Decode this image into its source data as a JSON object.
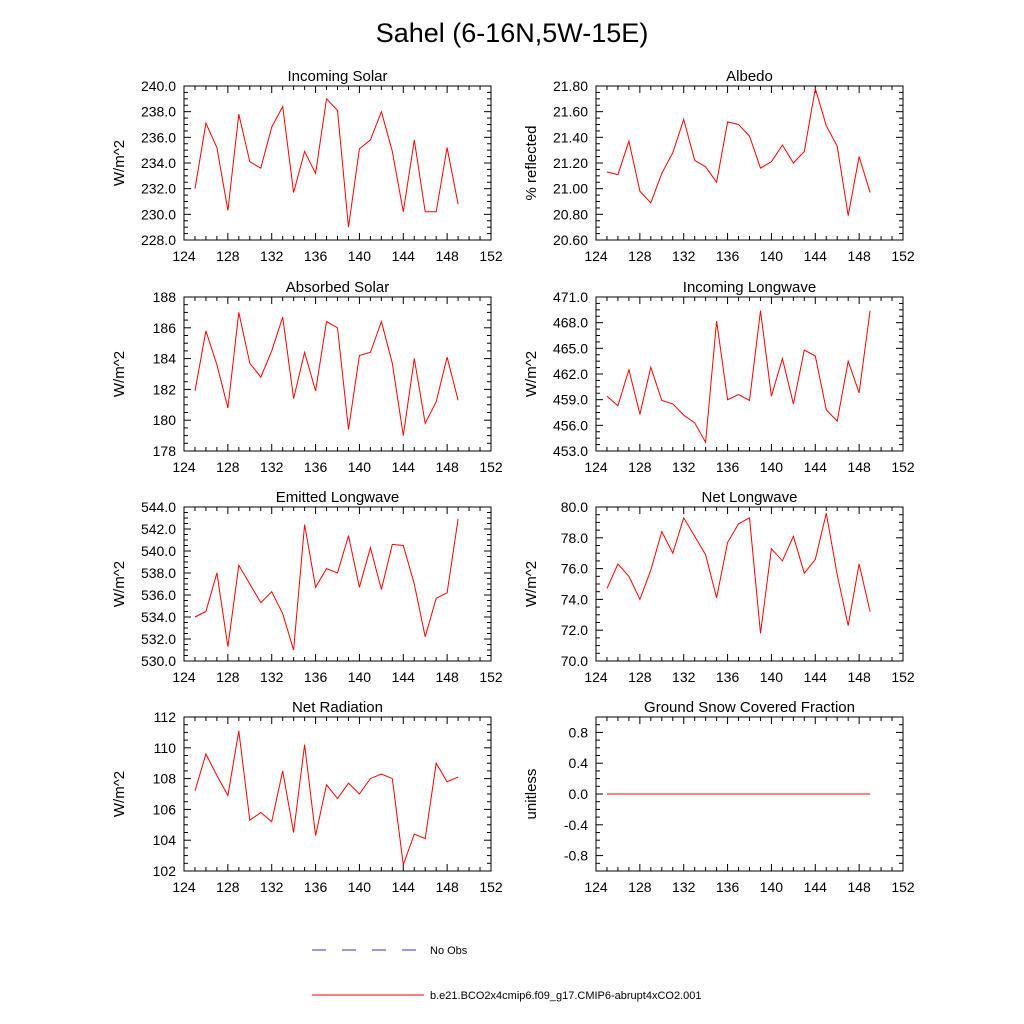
{
  "figure": {
    "title": "Sahel (6-16N,5W-15E)"
  },
  "legend": {
    "obs_label": "No Obs",
    "model_label": "b.e21.BCO2x4cmip6.f09_g17.CMIP6-abrupt4xCO2.001",
    "obs_color": "#3333cc",
    "model_color": "#ff0000"
  },
  "chart_data": [
    {
      "type": "line",
      "title": "Incoming Solar",
      "ylabel": "W/m^2",
      "xlim": [
        124,
        152
      ],
      "ylim": [
        228,
        240
      ],
      "xticks": [
        124,
        128,
        132,
        136,
        140,
        144,
        148,
        152
      ],
      "xtick_labels": [
        "124",
        "128",
        "132",
        "136",
        "140",
        "144",
        "148",
        "152"
      ],
      "yticks": [
        228,
        230,
        232,
        234,
        236,
        238,
        240
      ],
      "ytick_labels": [
        "228.0",
        "230.0",
        "232.0",
        "234.0",
        "236.0",
        "238.0",
        "240.0"
      ],
      "x": [
        125,
        126,
        127,
        128,
        129,
        130,
        131,
        132,
        133,
        134,
        135,
        136,
        137,
        138,
        139,
        140,
        141,
        142,
        143,
        144,
        145,
        146,
        147,
        148,
        149
      ],
      "y": [
        232.0,
        237.1,
        235.2,
        230.3,
        237.8,
        234.1,
        233.6,
        236.8,
        238.4,
        231.7,
        234.9,
        233.2,
        239.0,
        238.1,
        229.0,
        235.1,
        235.8,
        238.0,
        234.9,
        230.2,
        235.8,
        230.2,
        230.2,
        235.2,
        230.8
      ]
    },
    {
      "type": "line",
      "title": "Albedo",
      "ylabel": "% reflected",
      "xlim": [
        124,
        152
      ],
      "ylim": [
        20.6,
        21.8
      ],
      "xticks": [
        124,
        128,
        132,
        136,
        140,
        144,
        148,
        152
      ],
      "xtick_labels": [
        "124",
        "128",
        "132",
        "136",
        "140",
        "144",
        "148",
        "152"
      ],
      "yticks": [
        20.6,
        20.8,
        21.0,
        21.2,
        21.4,
        21.6,
        21.8
      ],
      "ytick_labels": [
        "20.60",
        "20.80",
        "21.00",
        "21.20",
        "21.40",
        "21.60",
        "21.80"
      ],
      "x": [
        125,
        126,
        127,
        128,
        129,
        130,
        131,
        132,
        133,
        134,
        135,
        136,
        137,
        138,
        139,
        140,
        141,
        142,
        143,
        144,
        145,
        146,
        147,
        148,
        149
      ],
      "y": [
        21.13,
        21.11,
        21.37,
        20.98,
        20.89,
        21.12,
        21.28,
        21.54,
        21.22,
        21.17,
        21.05,
        21.52,
        21.5,
        21.41,
        21.16,
        21.21,
        21.34,
        21.2,
        21.29,
        21.78,
        21.49,
        21.33,
        20.79,
        21.25,
        20.97
      ]
    },
    {
      "type": "line",
      "title": "Absorbed Solar",
      "ylabel": "W/m^2",
      "xlim": [
        124,
        152
      ],
      "ylim": [
        178,
        188
      ],
      "xticks": [
        124,
        128,
        132,
        136,
        140,
        144,
        148,
        152
      ],
      "xtick_labels": [
        "124",
        "128",
        "132",
        "136",
        "140",
        "144",
        "148",
        "152"
      ],
      "yticks": [
        178,
        180,
        182,
        184,
        186,
        188
      ],
      "ytick_labels": [
        "178",
        "180",
        "182",
        "184",
        "186",
        "188"
      ],
      "x": [
        125,
        126,
        127,
        128,
        129,
        130,
        131,
        132,
        133,
        134,
        135,
        136,
        137,
        138,
        139,
        140,
        141,
        142,
        143,
        144,
        145,
        146,
        147,
        148,
        149
      ],
      "y": [
        181.9,
        185.8,
        183.6,
        180.8,
        187.0,
        183.7,
        182.8,
        184.5,
        186.7,
        181.4,
        184.4,
        181.9,
        186.4,
        186.0,
        179.4,
        184.2,
        184.4,
        186.4,
        183.7,
        179.0,
        184.0,
        179.8,
        181.2,
        184.1,
        181.3
      ]
    },
    {
      "type": "line",
      "title": "Incoming Longwave",
      "ylabel": "W/m^2",
      "xlim": [
        124,
        152
      ],
      "ylim": [
        453,
        471
      ],
      "xticks": [
        124,
        128,
        132,
        136,
        140,
        144,
        148,
        152
      ],
      "xtick_labels": [
        "124",
        "128",
        "132",
        "136",
        "140",
        "144",
        "148",
        "152"
      ],
      "yticks": [
        453,
        456,
        459,
        462,
        465,
        468,
        471
      ],
      "ytick_labels": [
        "453.0",
        "456.0",
        "459.0",
        "462.0",
        "465.0",
        "468.0",
        "471.0"
      ],
      "x": [
        125,
        126,
        127,
        128,
        129,
        130,
        131,
        132,
        133,
        134,
        135,
        136,
        137,
        138,
        139,
        140,
        141,
        142,
        143,
        144,
        145,
        146,
        147,
        148,
        149
      ],
      "y": [
        459.4,
        458.3,
        462.5,
        457.3,
        462.8,
        458.9,
        458.5,
        457.2,
        456.3,
        454.0,
        468.2,
        459.0,
        459.6,
        458.9,
        469.4,
        459.4,
        463.8,
        458.5,
        464.8,
        464.1,
        457.8,
        456.5,
        463.5,
        459.8,
        469.4
      ]
    },
    {
      "type": "line",
      "title": "Emitted Longwave",
      "ylabel": "W/m^2",
      "xlim": [
        124,
        152
      ],
      "ylim": [
        530,
        544
      ],
      "xticks": [
        124,
        128,
        132,
        136,
        140,
        144,
        148,
        152
      ],
      "xtick_labels": [
        "124",
        "128",
        "132",
        "136",
        "140",
        "144",
        "148",
        "152"
      ],
      "yticks": [
        530,
        532,
        534,
        536,
        538,
        540,
        542,
        544
      ],
      "ytick_labels": [
        "530.0",
        "532.0",
        "534.0",
        "536.0",
        "538.0",
        "540.0",
        "542.0",
        "544.0"
      ],
      "x": [
        125,
        126,
        127,
        128,
        129,
        130,
        131,
        132,
        133,
        134,
        135,
        136,
        137,
        138,
        139,
        140,
        141,
        142,
        143,
        144,
        145,
        146,
        147,
        148,
        149
      ],
      "y": [
        534.0,
        534.5,
        538.0,
        531.3,
        538.7,
        537.0,
        535.3,
        536.3,
        534.3,
        531.0,
        542.4,
        536.7,
        538.4,
        538.0,
        541.4,
        536.7,
        540.3,
        536.5,
        540.6,
        540.5,
        537.0,
        532.2,
        535.7,
        536.2,
        542.9
      ]
    },
    {
      "type": "line",
      "title": "Net Longwave",
      "ylabel": "W/m^2",
      "xlim": [
        124,
        152
      ],
      "ylim": [
        70,
        80
      ],
      "xticks": [
        124,
        128,
        132,
        136,
        140,
        144,
        148,
        152
      ],
      "xtick_labels": [
        "124",
        "128",
        "132",
        "136",
        "140",
        "144",
        "148",
        "152"
      ],
      "yticks": [
        70,
        72,
        74,
        76,
        78,
        80
      ],
      "ytick_labels": [
        "70.0",
        "72.0",
        "74.0",
        "76.0",
        "78.0",
        "80.0"
      ],
      "x": [
        125,
        126,
        127,
        128,
        129,
        130,
        131,
        132,
        133,
        134,
        135,
        136,
        137,
        138,
        139,
        140,
        141,
        142,
        143,
        144,
        145,
        146,
        147,
        148,
        149
      ],
      "y": [
        74.7,
        76.3,
        75.5,
        74.0,
        75.9,
        78.4,
        77.0,
        79.3,
        78.1,
        76.9,
        74.1,
        77.7,
        78.9,
        79.3,
        71.8,
        77.3,
        76.5,
        78.1,
        75.7,
        76.6,
        79.6,
        75.6,
        72.3,
        76.3,
        73.2
      ]
    },
    {
      "type": "line",
      "title": "Net Radiation",
      "ylabel": "W/m^2",
      "xlim": [
        124,
        152
      ],
      "ylim": [
        102,
        112
      ],
      "xticks": [
        124,
        128,
        132,
        136,
        140,
        144,
        148,
        152
      ],
      "xtick_labels": [
        "124",
        "128",
        "132",
        "136",
        "140",
        "144",
        "148",
        "152"
      ],
      "yticks": [
        102,
        104,
        106,
        108,
        110,
        112
      ],
      "ytick_labels": [
        "102",
        "104",
        "106",
        "108",
        "110",
        "112"
      ],
      "x": [
        125,
        126,
        127,
        128,
        129,
        130,
        131,
        132,
        133,
        134,
        135,
        136,
        137,
        138,
        139,
        140,
        141,
        142,
        143,
        144,
        145,
        146,
        147,
        148,
        149
      ],
      "y": [
        107.2,
        109.6,
        108.2,
        106.9,
        111.1,
        105.3,
        105.8,
        105.2,
        108.5,
        104.5,
        110.2,
        104.3,
        107.6,
        106.7,
        107.7,
        107.0,
        108.0,
        108.3,
        108.0,
        102.4,
        104.4,
        104.1,
        109.0,
        107.8,
        108.1
      ]
    },
    {
      "type": "line",
      "title": "Ground Snow Covered Fraction",
      "ylabel": "unitless",
      "xlim": [
        124,
        152
      ],
      "ylim": [
        -1.0,
        1.0
      ],
      "xticks": [
        124,
        128,
        132,
        136,
        140,
        144,
        148,
        152
      ],
      "xtick_labels": [
        "124",
        "128",
        "132",
        "136",
        "140",
        "144",
        "148",
        "152"
      ],
      "yticks": [
        -0.8,
        -0.4,
        0.0,
        0.4,
        0.8
      ],
      "ytick_labels": [
        "-0.8",
        "-0.4",
        "0.0",
        "0.4",
        "0.8"
      ],
      "x": [
        125,
        126,
        127,
        128,
        129,
        130,
        131,
        132,
        133,
        134,
        135,
        136,
        137,
        138,
        139,
        140,
        141,
        142,
        143,
        144,
        145,
        146,
        147,
        148,
        149
      ],
      "y": [
        0,
        0,
        0,
        0,
        0,
        0,
        0,
        0,
        0,
        0,
        0,
        0,
        0,
        0,
        0,
        0,
        0,
        0,
        0,
        0,
        0,
        0,
        0,
        0,
        0
      ]
    }
  ]
}
